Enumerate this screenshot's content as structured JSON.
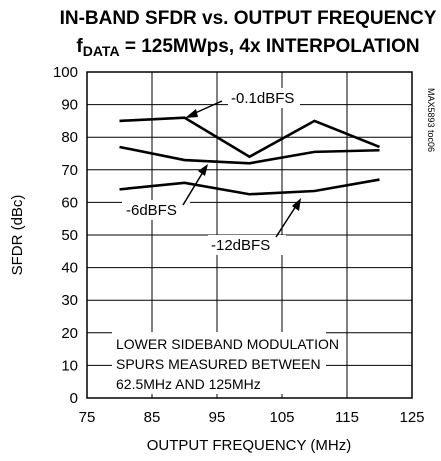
{
  "chart_data": {
    "type": "line",
    "title_line1": "IN-BAND SFDR vs. OUTPUT FREQUENCY",
    "title_line2_prefix": "f",
    "title_line2_sub": "DATA",
    "title_line2_rest": " = 125MWps, 4x INTERPOLATION",
    "xlabel": "OUTPUT FREQUENCY (MHz)",
    "ylabel": "SFDR (dBc)",
    "xlim": [
      75,
      125
    ],
    "ylim": [
      0,
      100
    ],
    "xticks": [
      75,
      85,
      95,
      105,
      115,
      125
    ],
    "yticks": [
      0,
      10,
      20,
      30,
      40,
      50,
      60,
      70,
      80,
      90,
      100
    ],
    "grid": true,
    "figure_id": "MAX5893 toc06",
    "note_lines": [
      "LOWER SIDEBAND MODULATION",
      "SPURS MEASURED BETWEEN",
      "62.5MHz AND 125MHz"
    ],
    "series": [
      {
        "name": "-0.1dBFS",
        "x": [
          80,
          90,
          100,
          110,
          120
        ],
        "y": [
          85,
          86,
          74,
          85,
          77
        ]
      },
      {
        "name": "-6dBFS",
        "x": [
          80,
          90,
          100,
          110,
          120
        ],
        "y": [
          77,
          73,
          72,
          75.5,
          76
        ]
      },
      {
        "name": "-12dBFS",
        "x": [
          80,
          90,
          100,
          110,
          120
        ],
        "y": [
          64,
          66,
          62.5,
          63.5,
          67
        ]
      }
    ],
    "annotations": [
      {
        "text": "-0.1dBFS",
        "series": "-0.1dBFS"
      },
      {
        "text": "-6dBFS",
        "series": "-6dBFS"
      },
      {
        "text": "-12dBFS",
        "series": "-12dBFS"
      }
    ]
  }
}
